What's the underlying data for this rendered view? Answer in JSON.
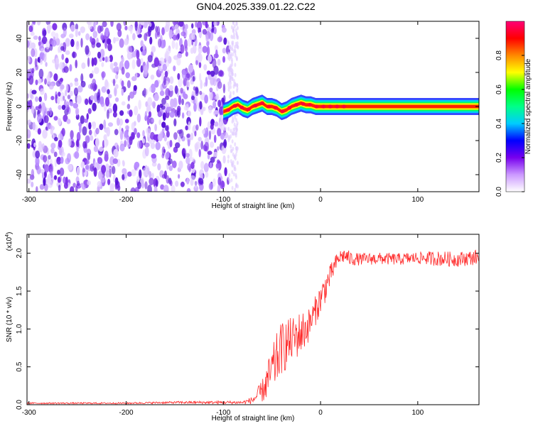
{
  "figure": {
    "title": "GN04.2025.339.01.22.C22"
  },
  "chart_data": [
    {
      "id": "spectrogram",
      "type": "heatmap",
      "xlabel": "Height of straight line (km)",
      "ylabel": "Frequency (Hz)",
      "xlim": [
        -302,
        163
      ],
      "ylim": [
        -50,
        50
      ],
      "xticks": [
        -300,
        -200,
        -100,
        0,
        100
      ],
      "yticks": [
        -40,
        -20,
        0,
        20,
        40
      ],
      "noise_region_x": [
        -302,
        -95
      ],
      "signal_ridge": {
        "x": [
          -100,
          -95,
          -90,
          -85,
          -80,
          -75,
          -70,
          -65,
          -60,
          -55,
          -50,
          -45,
          -40,
          -35,
          -30,
          -25,
          -20,
          -15,
          -10,
          -5,
          0,
          5,
          10,
          20,
          40,
          60,
          80,
          100,
          120,
          140,
          163
        ],
        "freq": [
          -3,
          -2,
          0,
          1,
          -1,
          -2,
          0,
          1,
          2,
          0,
          0,
          -1,
          -3,
          -2,
          0,
          1,
          2,
          1,
          1,
          0,
          0,
          0,
          0,
          0,
          0,
          0,
          0,
          0,
          0,
          0,
          0
        ]
      },
      "colorbar": {
        "label": "Normalized spectral amplitude",
        "range": [
          0,
          1
        ],
        "ticks": [
          "0.0",
          "0.2",
          "0.4",
          "0.6",
          "0.8"
        ],
        "colors": [
          "#ffffff",
          "#cc99ff",
          "#7700ee",
          "#0000ff",
          "#00ccff",
          "#00ff88",
          "#00ff00",
          "#ffff00",
          "#ff8800",
          "#ff0000",
          "#ff0077"
        ]
      }
    },
    {
      "id": "snr",
      "type": "line",
      "xlabel": "Height of straight line (km)",
      "ylabel": "SNR (10 * v/v)",
      "multiplier_label": "(x10",
      "multiplier_exponent": "4",
      "xlim": [
        -302,
        163
      ],
      "ylim": [
        0,
        2.25
      ],
      "xticks": [
        -300,
        -200,
        -100,
        0,
        100
      ],
      "yticks": [
        "0.0",
        "0.5",
        "1.0",
        "1.5",
        "2.0"
      ],
      "line_color": "#ff2a2a",
      "series": [
        {
          "x": [
            -302,
            -250,
            -200,
            -150,
            -100,
            -80,
            -70,
            -60,
            -55,
            -50,
            -45,
            -40,
            -35,
            -30,
            -25,
            -20,
            -15,
            -10,
            -5,
            0,
            5,
            10,
            15,
            20,
            25,
            30,
            40,
            60,
            80,
            100,
            120,
            140,
            163
          ],
          "values": [
            0.02,
            0.02,
            0.02,
            0.03,
            0.03,
            0.03,
            0.06,
            0.18,
            0.3,
            0.45,
            0.6,
            0.75,
            0.8,
            0.85,
            0.9,
            0.95,
            1.0,
            1.1,
            1.25,
            1.4,
            1.55,
            1.7,
            1.85,
            1.95,
            1.97,
            1.93,
            1.92,
            1.93,
            1.92,
            1.94,
            1.93,
            1.92,
            1.95
          ],
          "noise_amplitude": [
            0.01,
            0.01,
            0.01,
            0.015,
            0.02,
            0.02,
            0.05,
            0.15,
            0.25,
            0.3,
            0.35,
            0.35,
            0.35,
            0.3,
            0.3,
            0.3,
            0.25,
            0.2,
            0.2,
            0.2,
            0.2,
            0.15,
            0.12,
            0.1,
            0.1,
            0.1,
            0.08,
            0.08,
            0.08,
            0.08,
            0.1,
            0.1,
            0.1
          ]
        }
      ]
    }
  ]
}
